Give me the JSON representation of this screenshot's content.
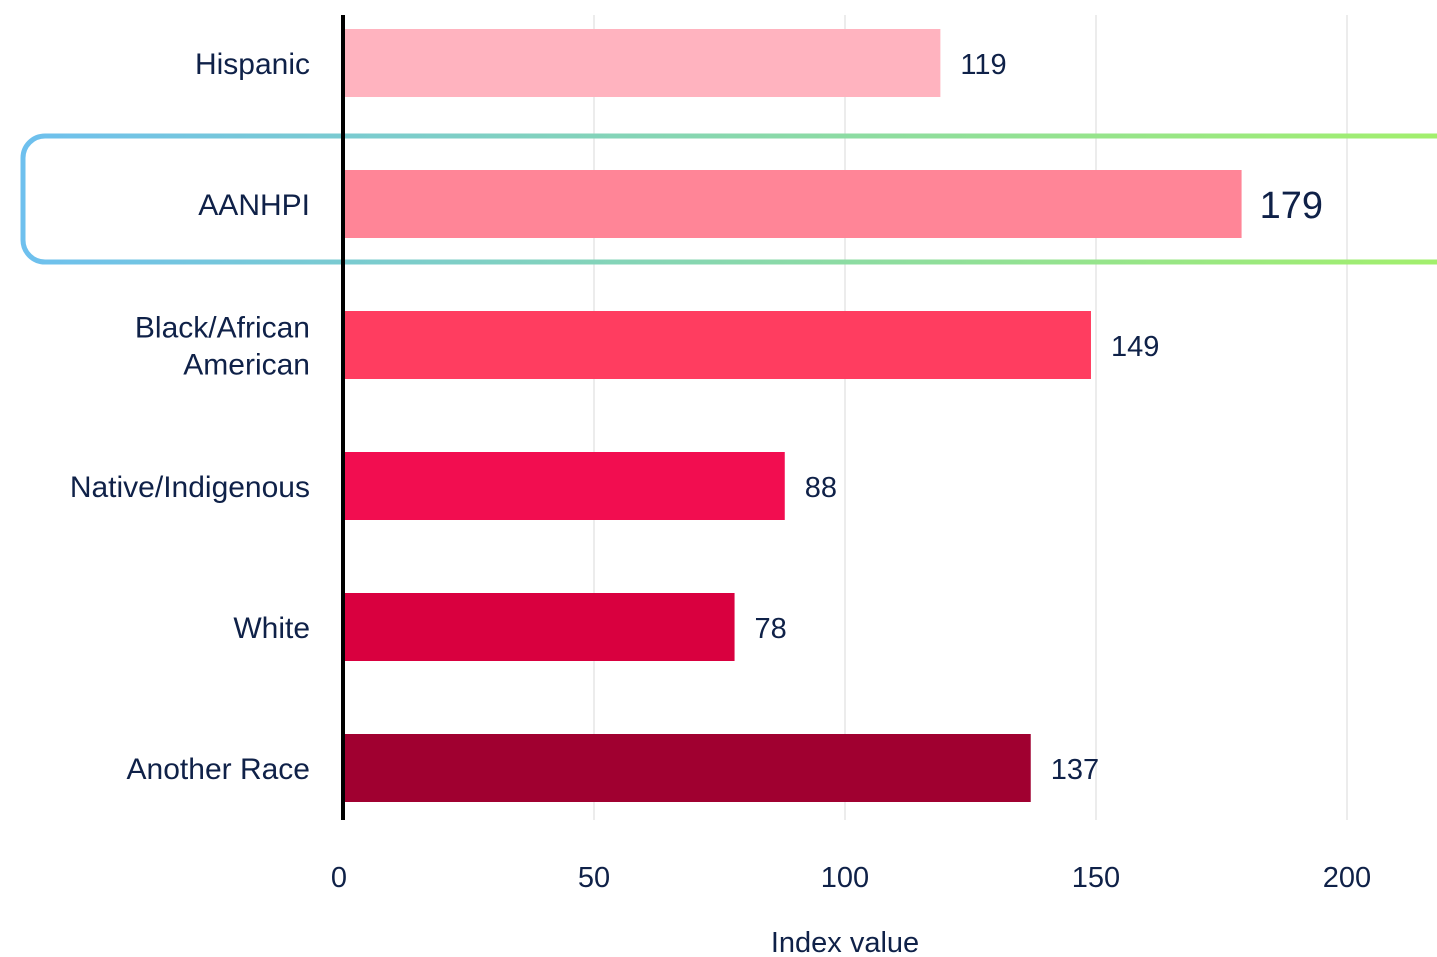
{
  "chart_data": {
    "type": "bar",
    "orientation": "horizontal",
    "categories": [
      "Hispanic",
      "AANHPI",
      "Black/African American",
      "Native/Indigenous",
      "White",
      "Another Race"
    ],
    "category_lines": [
      [
        "Hispanic"
      ],
      [
        "AANHPI"
      ],
      [
        "Black/African",
        "American"
      ],
      [
        "Native/Indigenous"
      ],
      [
        "White"
      ],
      [
        "Another Race"
      ]
    ],
    "values": [
      119,
      179,
      149,
      88,
      78,
      137
    ],
    "value_labels": [
      "119",
      "179",
      "149",
      "88",
      "78",
      "137"
    ],
    "bar_colors": [
      "#ffb3bf",
      "#ff8597",
      "#ff3d60",
      "#f20d50",
      "#d9003f",
      "#a00030"
    ],
    "highlighted_category": "AANHPI",
    "highlight_colors": [
      "#6ec0ee",
      "#a3f06a"
    ],
    "xlabel": "Index value",
    "ylabel": "",
    "title": "",
    "xlim": [
      0,
      220
    ],
    "xticks": [
      0,
      50,
      100,
      150,
      200
    ],
    "xtick_labels": [
      "0",
      "50",
      "100",
      "150",
      "200"
    ],
    "grid": "vertical",
    "legend": "none",
    "colors": {
      "axis": "#000000",
      "grid": "#ececec",
      "text": "#0f2148"
    }
  }
}
